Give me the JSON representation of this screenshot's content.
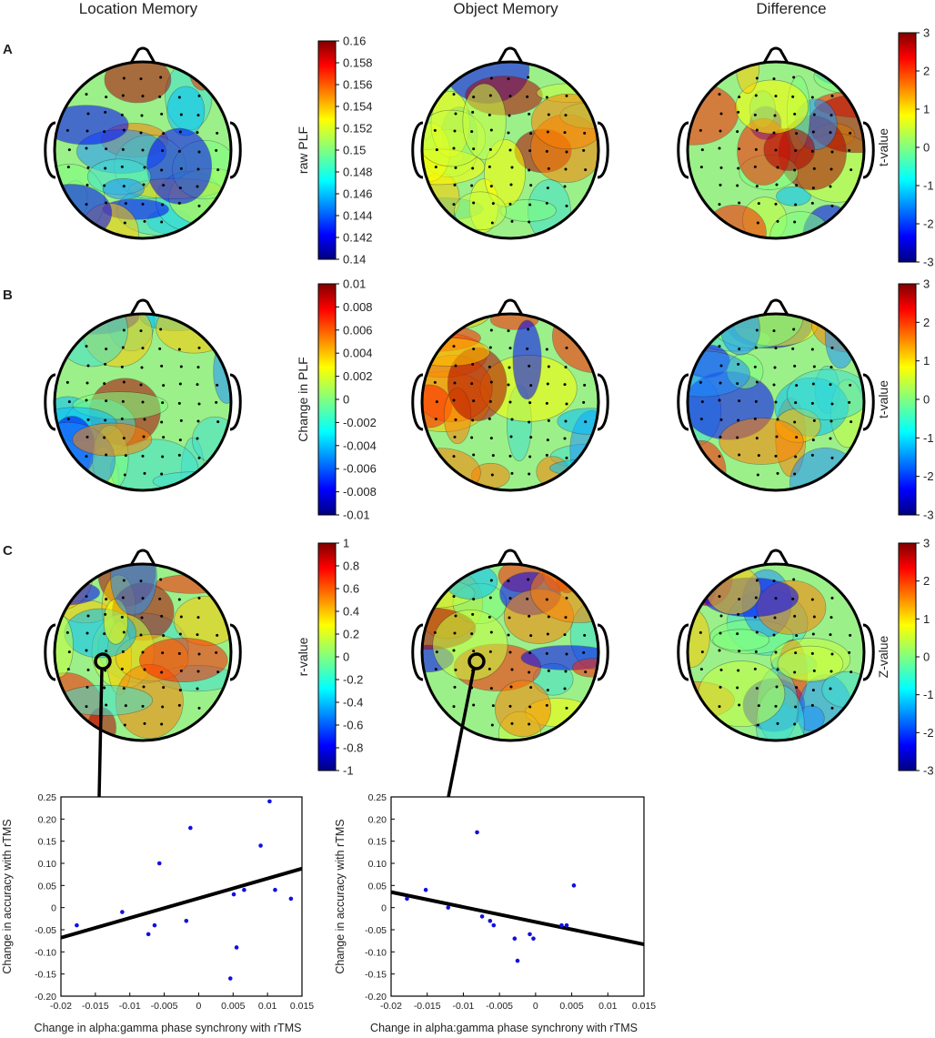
{
  "columns": [
    "Location Memory",
    "Object Memory",
    "Difference"
  ],
  "rows": [
    {
      "label": "A",
      "colorbars": [
        {
          "label": "raw PLF",
          "ticks": [
            "0.16",
            "0.158",
            "0.156",
            "0.154",
            "0.152",
            "0.15",
            "0.148",
            "0.146",
            "0.144",
            "0.142",
            "0.14"
          ]
        },
        {
          "label": "t-value",
          "ticks": [
            "3",
            "2",
            "1",
            "0",
            "-1",
            "-2",
            "-3"
          ]
        }
      ]
    },
    {
      "label": "B",
      "colorbars": [
        {
          "label": "Change in PLF",
          "ticks": [
            "0.01",
            "0.008",
            "0.006",
            "0.004",
            "0.002",
            "0",
            "-0.002",
            "-0.004",
            "-0.006",
            "-0.008",
            "-0.01"
          ]
        },
        {
          "label": "t-value",
          "ticks": [
            "3",
            "2",
            "1",
            "0",
            "-1",
            "-2",
            "-3"
          ]
        }
      ]
    },
    {
      "label": "C",
      "colorbars": [
        {
          "label": "r-value",
          "ticks": [
            "1",
            "0.8",
            "0.6",
            "0.4",
            "0.2",
            "0",
            "-0.2",
            "-0.4",
            "-0.6",
            "-0.8",
            "-1"
          ]
        },
        {
          "label": "Z-value",
          "ticks": [
            "3",
            "2",
            "1",
            "0",
            "-1",
            "-2",
            "-3"
          ]
        }
      ]
    }
  ],
  "colors": {
    "high": "#7f0000",
    "mid": "#80ff80",
    "low": "#00007f"
  },
  "chart_data": [
    {
      "type": "scatter",
      "xlabel": "Change in alpha:gamma phase synchrony with rTMS",
      "ylabel": "Change in accuracy with rTMS",
      "xlim": [
        -0.02,
        0.015
      ],
      "ylim": [
        -0.2,
        0.25
      ],
      "xticks": [
        "-0.02",
        "-0.015",
        "-0.01",
        "-0.005",
        "0",
        "0.005",
        "0.01",
        "0.015"
      ],
      "yticks": [
        "0.25",
        "0.20",
        "0.15",
        "0.10",
        "0.05",
        "0",
        "-0.05",
        "-0.10",
        "-0.15",
        "-0.20"
      ],
      "points": [
        {
          "x": -0.0177,
          "y": -0.04
        },
        {
          "x": -0.0111,
          "y": -0.01
        },
        {
          "x": -0.0073,
          "y": -0.06
        },
        {
          "x": -0.0064,
          "y": -0.04
        },
        {
          "x": -0.0057,
          "y": 0.1
        },
        {
          "x": -0.0018,
          "y": -0.03
        },
        {
          "x": -0.0012,
          "y": 0.18
        },
        {
          "x": 0.0046,
          "y": -0.16
        },
        {
          "x": 0.0051,
          "y": 0.03
        },
        {
          "x": 0.0055,
          "y": -0.09
        },
        {
          "x": 0.0066,
          "y": 0.04
        },
        {
          "x": 0.009,
          "y": 0.14
        },
        {
          "x": 0.0103,
          "y": 0.24
        },
        {
          "x": 0.0111,
          "y": 0.04
        },
        {
          "x": 0.0134,
          "y": 0.02
        }
      ],
      "fit": {
        "x1": -0.02,
        "y1": -0.068,
        "x2": 0.015,
        "y2": 0.088
      }
    },
    {
      "type": "scatter",
      "xlabel": "Change in alpha:gamma phase synchrony with rTMS",
      "ylabel": "Change in accuracy with rTMS",
      "xlim": [
        -0.02,
        0.015
      ],
      "ylim": [
        -0.2,
        0.25
      ],
      "xticks": [
        "-0.02",
        "-0.015",
        "-0.01",
        "-0.005",
        "0",
        "0.005",
        "0.01",
        "0.015"
      ],
      "yticks": [
        "0.25",
        "0.20",
        "0.15",
        "0.10",
        "0.05",
        "0",
        "-0.05",
        "-0.10",
        "-0.15",
        "-0.20"
      ],
      "points": [
        {
          "x": -0.0178,
          "y": 0.02
        },
        {
          "x": -0.0152,
          "y": 0.04
        },
        {
          "x": -0.0121,
          "y": 0.0
        },
        {
          "x": -0.0081,
          "y": 0.17
        },
        {
          "x": -0.0074,
          "y": -0.02
        },
        {
          "x": -0.0063,
          "y": -0.03
        },
        {
          "x": -0.0058,
          "y": -0.04
        },
        {
          "x": -0.0029,
          "y": -0.07
        },
        {
          "x": -0.0025,
          "y": -0.12
        },
        {
          "x": -0.0008,
          "y": -0.06
        },
        {
          "x": -0.0003,
          "y": -0.07
        },
        {
          "x": 0.0036,
          "y": -0.04
        },
        {
          "x": 0.0043,
          "y": -0.04
        },
        {
          "x": 0.0053,
          "y": 0.05
        }
      ],
      "fit": {
        "x1": -0.02,
        "y1": 0.035,
        "x2": 0.015,
        "y2": -0.083
      }
    }
  ]
}
